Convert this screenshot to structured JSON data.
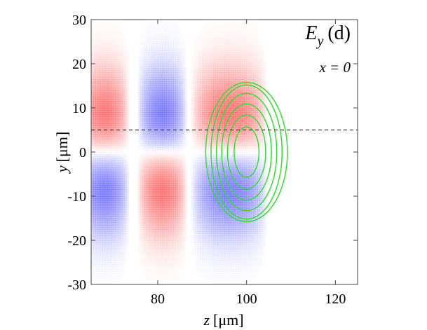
{
  "chart_data": {
    "type": "heatmap",
    "title": "",
    "annotation": {
      "field_symbol": "E",
      "field_subscript": "y",
      "field_arg": "(d)",
      "condition": "x = 0"
    },
    "xlabel": {
      "var": "z",
      "unit": "[μm]"
    },
    "ylabel": {
      "var": "y",
      "unit": "[μm]"
    },
    "xlim": [
      65,
      125
    ],
    "ylim": [
      -30,
      30
    ],
    "xticks": [
      80,
      100,
      120
    ],
    "yticks": [
      -30,
      -20,
      -10,
      0,
      10,
      20,
      30
    ],
    "grid": false,
    "legend": "none",
    "colors": {
      "positive": "#ff3232",
      "negative": "#3c3cff",
      "contour": "#33dd33",
      "dashed_line": "#333333"
    },
    "field_lobes": [
      {
        "z_center": 68,
        "z_halfwidth": 5.5,
        "upper_sign": 1
      },
      {
        "z_center": 81,
        "z_halfwidth": 5.5,
        "upper_sign": -1
      },
      {
        "z_center": 96,
        "z_halfwidth": 8.5,
        "upper_sign": 1
      }
    ],
    "dashed_line_y": 5,
    "contours": {
      "center": [
        100,
        0
      ],
      "semi_axes_z": [
        2.8,
        4.3,
        5.6,
        6.8,
        8.0,
        9.2
      ],
      "semi_axes_y": [
        5.7,
        8.4,
        10.9,
        13.3,
        15.2,
        15.8
      ]
    }
  }
}
